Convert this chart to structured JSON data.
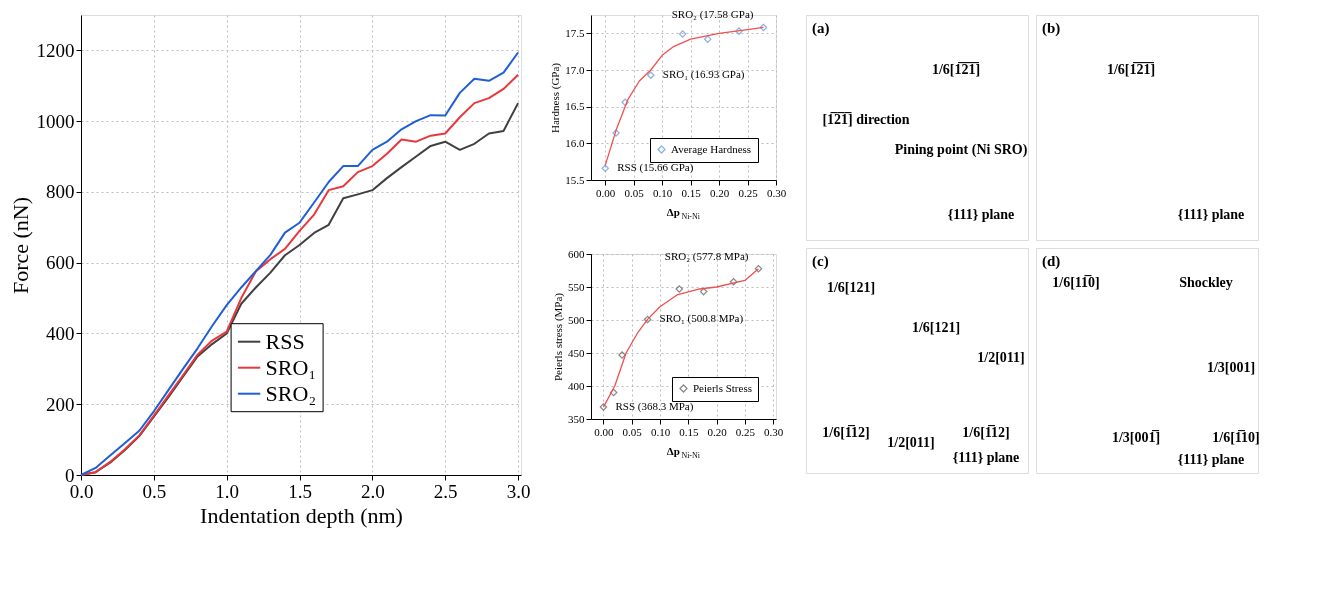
{
  "chart_data": [
    {
      "type": "line",
      "xlabel": "Indentation depth (nm)",
      "ylabel": "Force (nN)",
      "x": [
        0,
        0.1,
        0.2,
        0.3,
        0.4,
        0.5,
        0.6,
        0.7,
        0.8,
        0.9,
        1.0,
        1.1,
        1.2,
        1.3,
        1.4,
        1.5,
        1.6,
        1.7,
        1.8,
        1.9,
        2.0,
        2.1,
        2.2,
        2.3,
        2.4,
        2.5,
        2.6,
        2.7,
        2.8,
        2.9,
        3.0
      ],
      "series": [
        {
          "name": "RSS",
          "color": "#404040",
          "values": [
            0,
            8,
            35,
            70,
            110,
            165,
            220,
            278,
            335,
            370,
            400,
            484,
            530,
            572,
            621,
            650,
            684,
            707,
            782,
            793,
            805,
            839,
            870,
            900,
            930,
            942,
            919,
            936,
            965,
            972,
            1051
          ]
        },
        {
          "name": "SRO₁",
          "color": "#e8383d",
          "values": [
            0,
            8,
            37,
            72,
            112,
            168,
            225,
            282,
            340,
            380,
            405,
            500,
            575,
            610,
            639,
            690,
            736,
            805,
            816,
            856,
            873,
            908,
            948,
            942,
            959,
            965,
            1011,
            1051,
            1065,
            1091,
            1131
          ]
        },
        {
          "name": "SRO₂",
          "color": "#1f5fd6",
          "values": [
            0,
            20,
            55,
            90,
            125,
            180,
            240,
            300,
            358,
            421,
            480,
            530,
            576,
            622,
            685,
            713,
            770,
            828,
            873,
            873,
            919,
            942,
            977,
            1000,
            1017,
            1016,
            1080,
            1120,
            1114,
            1137,
            1194
          ]
        }
      ],
      "xlim": [
        0,
        3.02
      ],
      "ylim": [
        0,
        1300
      ],
      "xticks": [
        {
          "value": 0,
          "label": "0.0"
        },
        0.5,
        {
          "value": 1,
          "label": "1.0"
        },
        1.5,
        {
          "value": 2,
          "label": "2.0"
        },
        2.5,
        {
          "value": 3,
          "label": "3.0"
        }
      ],
      "yticks": [
        0,
        200,
        400,
        600,
        800,
        1000,
        1200
      ],
      "grid": true,
      "legend": "bottom",
      "line_style": "solid",
      "marker": "none"
    },
    {
      "type": "scatter",
      "xlabel": "Δp$_{Ni-Ni}$",
      "ylabel": "Hardness (GPa)",
      "series": [
        {
          "name": "Average Hardness",
          "color": "#5b8fd6",
          "type": "scatter",
          "marker": "diamond",
          "x": [
            0,
            0.019,
            0.035,
            0.08,
            0.136,
            0.18,
            0.235,
            0.278
          ],
          "values": [
            15.66,
            16.14,
            16.56,
            16.93,
            17.49,
            17.42,
            17.53,
            17.58
          ]
        },
        {
          "color": "#f05050",
          "type": "line",
          "x": [
            0,
            0.02,
            0.04,
            0.06,
            0.08,
            0.1,
            0.12,
            0.15,
            0.2,
            0.25,
            0.278
          ],
          "values": [
            15.7,
            16.2,
            16.6,
            16.85,
            17.0,
            17.2,
            17.32,
            17.42,
            17.5,
            17.55,
            17.58
          ]
        }
      ],
      "xlim": [
        -0.025,
        0.3
      ],
      "ylim": [
        15.5,
        17.75
      ],
      "xticks": [
        {
          "value": 0,
          "label": "0.00"
        },
        0.05,
        {
          "value": 0.1,
          "label": "0.10"
        },
        0.15,
        {
          "value": 0.2,
          "label": "0.20"
        },
        0.25,
        {
          "value": 0.3,
          "label": "0.30"
        }
      ],
      "yticks": [
        15.5,
        {
          "value": 16,
          "label": "16.0"
        },
        16.5,
        {
          "value": 17,
          "label": "17.0"
        },
        17.5
      ],
      "annotations": [
        {
          "text": "RSS (15.66 GPa)",
          "x": 0,
          "y": 15.66
        },
        {
          "text": "SRO₁ (16.93 GPa)",
          "x": 0.08,
          "y": 16.93
        },
        {
          "text": "SRO₂ (17.58 GPa)",
          "x": 0.278,
          "y": 17.58
        }
      ],
      "grid": true,
      "legend": "bottom right"
    },
    {
      "type": "scatter",
      "xlabel": "Δp$_{Ni-Ni}$",
      "ylabel": "Peierls stress (MPa)",
      "series": [
        {
          "name": "Peierls Stress",
          "color": "#555555",
          "type": "scatter",
          "marker": "diamond",
          "x": [
            0,
            0.018,
            0.033,
            0.078,
            0.134,
            0.177,
            0.23,
            0.274
          ],
          "values": [
            368.3,
            390,
            447,
            500.8,
            547,
            543,
            558,
            577.8
          ]
        },
        {
          "color": "#f05050",
          "type": "line",
          "x": [
            0,
            0.02,
            0.04,
            0.06,
            0.078,
            0.1,
            0.13,
            0.17,
            0.2,
            0.25,
            0.274
          ],
          "values": [
            368,
            400,
            450,
            480,
            501,
            520,
            538,
            547,
            550,
            560,
            577.8
          ]
        }
      ],
      "xlim": [
        -0.022,
        0.305
      ],
      "ylim": [
        350,
        600
      ],
      "xticks": [
        {
          "value": 0,
          "label": "0.00"
        },
        0.05,
        {
          "value": 0.1,
          "label": "0.10"
        },
        0.15,
        {
          "value": 0.2,
          "label": "0.20"
        },
        0.25,
        {
          "value": 0.3,
          "label": "0.30"
        }
      ],
      "yticks": [
        350,
        400,
        450,
        500,
        550,
        600
      ],
      "annotations": [
        {
          "text": "RSS (368.3 MPa)",
          "x": 0,
          "y": 368.3
        },
        {
          "text": "SRO₁ (500.8 MPa)",
          "x": 0.078,
          "y": 500.8
        },
        {
          "text": "SRO₂ (577.8 MPa)",
          "x": 0.274,
          "y": 577.8
        }
      ],
      "grid": true,
      "legend": "bottom right"
    },
    {
      "type": "other",
      "title": "(a)",
      "annotations": [
        "1/6[1̅2̅1̅]",
        "[1̅2̅1̅] direction",
        "Pining point (Ni SRO)",
        "{111} plane"
      ]
    },
    {
      "type": "other",
      "title": "(b)",
      "annotations": [
        "1/6[1̅2̅1̅]",
        "{111} plane"
      ]
    },
    {
      "type": "other",
      "title": "(c)",
      "annotations": [
        "1/6[121]",
        "1/6[121]",
        "1/2[011]",
        "1/6[1̅12]",
        "1/2[011]",
        "1/6[1̅12]",
        "{111} plane"
      ]
    },
    {
      "type": "other",
      "title": "(d)",
      "annotations": [
        "1/6[11̅0]",
        "Shockley",
        "1/3[001]",
        "1/3[001̅]",
        "1/6[1̅10]",
        "{111} plane"
      ]
    }
  ]
}
